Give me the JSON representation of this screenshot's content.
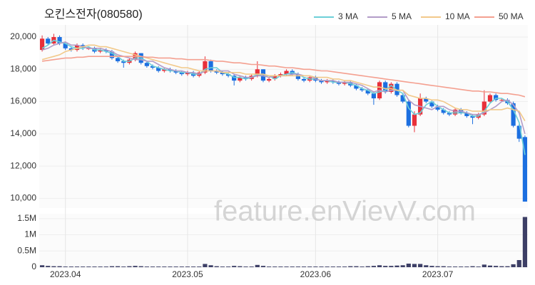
{
  "chart_data": {
    "type": "candlestick",
    "title": "오킨스전자(080580)",
    "watermark": "feature.enVievV.com",
    "up_color": "#e8303a",
    "down_color": "#1c6fe0",
    "ylim": [
      9400,
      20750
    ],
    "yticks": [
      {
        "value": 10000,
        "label": "10,000"
      },
      {
        "value": 12000,
        "label": "12,000"
      },
      {
        "value": 14000,
        "label": "14,000"
      },
      {
        "value": 16000,
        "label": "16,000"
      },
      {
        "value": 18000,
        "label": "18,000"
      },
      {
        "value": 20000,
        "label": "20,000"
      }
    ],
    "xticks": [
      {
        "value": 4,
        "label": "2023.04"
      },
      {
        "value": 25,
        "label": "2023.05"
      },
      {
        "value": 47,
        "label": "2023.06"
      },
      {
        "value": 68,
        "label": "2023.07"
      }
    ],
    "legend": "top-right",
    "open": [
      19200,
      19900,
      19600,
      20000,
      19600,
      19300,
      19200,
      19500,
      19300,
      19300,
      19100,
      19200,
      19100,
      18700,
      18500,
      18400,
      18600,
      19000,
      18400,
      18200,
      18100,
      17900,
      18000,
      17900,
      17800,
      17700,
      17800,
      17600,
      17800,
      18500,
      17900,
      17800,
      17700,
      17600,
      17300,
      17500,
      17400,
      17600,
      18000,
      17300,
      17400,
      17600,
      17700,
      17900,
      17700,
      17400,
      17300,
      17500,
      17300,
      17200,
      17300,
      17200,
      17100,
      17200,
      17000,
      16800,
      16700,
      16500,
      16200,
      17200,
      16600,
      17100,
      16400,
      16000,
      14500,
      15200,
      16200,
      16000,
      15700,
      15500,
      15300,
      15200,
      15500,
      15300,
      15100,
      15000,
      15200,
      16000,
      16400,
      16100,
      16100,
      15900,
      14500,
      13800
    ],
    "high": [
      20100,
      20000,
      20200,
      20100,
      19700,
      19400,
      19600,
      19600,
      19400,
      19400,
      19300,
      19300,
      19200,
      18800,
      18600,
      18700,
      19100,
      19000,
      18500,
      18300,
      18200,
      18100,
      18100,
      18000,
      17900,
      17900,
      17900,
      17900,
      18800,
      18600,
      18000,
      17900,
      17800,
      17700,
      17600,
      17600,
      17700,
      18500,
      18000,
      17500,
      17700,
      17800,
      18000,
      18000,
      17800,
      17500,
      17600,
      17600,
      17400,
      17400,
      17400,
      17300,
      17300,
      17300,
      17100,
      16900,
      16800,
      16600,
      17300,
      17300,
      17200,
      17200,
      16500,
      16100,
      15400,
      16500,
      16300,
      16100,
      15800,
      15600,
      15400,
      15600,
      15600,
      15400,
      15200,
      15300,
      16700,
      16500,
      16500,
      16200,
      16200,
      16000,
      14600,
      13900
    ],
    "low": [
      19100,
      19500,
      19500,
      19500,
      19200,
      19100,
      19100,
      19200,
      19200,
      19000,
      19000,
      19000,
      18600,
      18400,
      18100,
      18300,
      18500,
      18300,
      18100,
      18000,
      17800,
      17800,
      17800,
      17700,
      17600,
      17600,
      17500,
      17500,
      17700,
      17800,
      17700,
      17600,
      17500,
      17000,
      17200,
      17300,
      17300,
      17500,
      17200,
      17200,
      17300,
      17500,
      17600,
      17600,
      17300,
      17200,
      17200,
      17200,
      17100,
      17100,
      17100,
      17000,
      17000,
      16900,
      16700,
      16600,
      16400,
      15800,
      16100,
      16500,
      16500,
      16300,
      15900,
      14400,
      14100,
      15100,
      15900,
      15600,
      15400,
      15200,
      15100,
      15100,
      15200,
      15000,
      14600,
      14900,
      15100,
      15900,
      16000,
      16000,
      15800,
      14400,
      13500,
      9800
    ],
    "close": [
      19900,
      19600,
      20000,
      19600,
      19300,
      19200,
      19500,
      19300,
      19300,
      19100,
      19200,
      19100,
      18700,
      18500,
      18400,
      18600,
      19000,
      18400,
      18200,
      18100,
      17900,
      18000,
      17900,
      17800,
      17700,
      17800,
      17600,
      17800,
      18500,
      17900,
      17800,
      17700,
      17600,
      17300,
      17500,
      17400,
      17600,
      18000,
      17300,
      17400,
      17600,
      17700,
      17900,
      17700,
      17400,
      17300,
      17500,
      17300,
      17200,
      17300,
      17200,
      17100,
      17200,
      17000,
      16800,
      16700,
      16500,
      16200,
      17200,
      16600,
      17100,
      16400,
      16000,
      14500,
      15200,
      16200,
      16000,
      15700,
      15500,
      15300,
      15200,
      15500,
      15300,
      15100,
      15000,
      15200,
      16000,
      16400,
      16100,
      16100,
      15900,
      14500,
      13700,
      9800
    ],
    "series": [
      {
        "name": "3 MA",
        "color": "#6ccfd8",
        "values": [
          19300,
          19500,
          19800,
          19700,
          19600,
          19400,
          19300,
          19300,
          19400,
          19200,
          19200,
          19100,
          19000,
          18800,
          18500,
          18500,
          18700,
          18700,
          18500,
          18200,
          18100,
          18000,
          17900,
          17900,
          17800,
          17800,
          17700,
          17700,
          18000,
          18100,
          18100,
          17800,
          17700,
          17500,
          17500,
          17400,
          17500,
          17700,
          17600,
          17600,
          17400,
          17600,
          17700,
          17800,
          17700,
          17500,
          17400,
          17400,
          17300,
          17300,
          17200,
          17200,
          17200,
          17100,
          17000,
          16800,
          16700,
          16500,
          16600,
          16700,
          17000,
          16700,
          16500,
          15600,
          15200,
          15300,
          15800,
          16000,
          15700,
          15500,
          15300,
          15300,
          15300,
          15300,
          15100,
          15100,
          15400,
          15900,
          16200,
          16200,
          16000,
          15500,
          14700,
          12700
        ]
      },
      {
        "name": "5 MA",
        "color": "#b39cc8",
        "values": [
          19200,
          19300,
          19500,
          19600,
          19700,
          19500,
          19500,
          19400,
          19300,
          19300,
          19300,
          19200,
          19100,
          18900,
          18800,
          18700,
          18600,
          18600,
          18500,
          18500,
          18300,
          18100,
          18000,
          17900,
          17900,
          17800,
          17800,
          17700,
          17900,
          17900,
          17900,
          17900,
          17900,
          17700,
          17600,
          17500,
          17500,
          17600,
          17600,
          17500,
          17600,
          17600,
          17600,
          17700,
          17700,
          17600,
          17600,
          17400,
          17300,
          17300,
          17300,
          17200,
          17200,
          17200,
          17100,
          17000,
          16800,
          16600,
          16700,
          16600,
          16700,
          16700,
          16700,
          16100,
          15800,
          15700,
          15600,
          15500,
          15700,
          15700,
          15500,
          15400,
          15400,
          15300,
          15200,
          15200,
          15300,
          15500,
          15700,
          16000,
          16100,
          15800,
          15300,
          14000
        ]
      },
      {
        "name": "10 MA",
        "color": "#f2c98a",
        "values": [
          18600,
          18700,
          18800,
          18900,
          19100,
          19200,
          19300,
          19400,
          19500,
          19500,
          19400,
          19400,
          19300,
          19200,
          19100,
          19000,
          18900,
          18800,
          18700,
          18600,
          18500,
          18400,
          18300,
          18200,
          18100,
          18100,
          18000,
          17900,
          17900,
          17900,
          17900,
          17800,
          17800,
          17800,
          17800,
          17700,
          17700,
          17700,
          17700,
          17600,
          17600,
          17600,
          17600,
          17600,
          17600,
          17600,
          17600,
          17500,
          17500,
          17500,
          17400,
          17400,
          17300,
          17300,
          17200,
          17100,
          17000,
          16900,
          16900,
          16800,
          16800,
          16700,
          16700,
          16400,
          16300,
          16200,
          16200,
          16100,
          16100,
          16000,
          15800,
          15600,
          15500,
          15500,
          15400,
          15400,
          15400,
          15500,
          15500,
          15500,
          15600,
          15500,
          15400,
          14800
        ]
      },
      {
        "name": "50 MA",
        "color": "#f4a090",
        "values": [
          18500,
          18550,
          18600,
          18650,
          18700,
          18700,
          18750,
          18750,
          18800,
          18800,
          18800,
          18800,
          18800,
          18800,
          18800,
          18800,
          18800,
          18800,
          18750,
          18750,
          18700,
          18700,
          18700,
          18650,
          18650,
          18600,
          18600,
          18600,
          18600,
          18550,
          18500,
          18500,
          18450,
          18400,
          18400,
          18350,
          18300,
          18300,
          18250,
          18200,
          18200,
          18150,
          18100,
          18100,
          18050,
          18000,
          18000,
          17950,
          17900,
          17900,
          17850,
          17800,
          17750,
          17700,
          17650,
          17600,
          17550,
          17500,
          17450,
          17400,
          17350,
          17300,
          17250,
          17200,
          17150,
          17100,
          17050,
          17000,
          16950,
          16900,
          16850,
          16800,
          16750,
          16700,
          16650,
          16650,
          16600,
          16600,
          16550,
          16500,
          16500,
          16450,
          16400,
          16300
        ]
      }
    ],
    "volume": {
      "color": "#3d3f66",
      "ylim": [
        0,
        1650000
      ],
      "yticks": [
        0,
        {
          "value": 500000,
          "label": "0.5M"
        },
        {
          "value": 1000000,
          "label": "1M"
        },
        {
          "value": 1500000,
          "label": "1.5M"
        }
      ],
      "values": [
        60000,
        40000,
        30000,
        30000,
        20000,
        20000,
        20000,
        20000,
        20000,
        20000,
        20000,
        20000,
        30000,
        30000,
        20000,
        30000,
        40000,
        30000,
        20000,
        20000,
        20000,
        20000,
        20000,
        20000,
        20000,
        20000,
        20000,
        20000,
        100000,
        60000,
        30000,
        20000,
        20000,
        40000,
        30000,
        20000,
        20000,
        70000,
        40000,
        20000,
        20000,
        20000,
        20000,
        20000,
        20000,
        20000,
        20000,
        20000,
        20000,
        20000,
        20000,
        20000,
        20000,
        30000,
        30000,
        20000,
        30000,
        40000,
        60000,
        40000,
        40000,
        50000,
        60000,
        110000,
        100000,
        100000,
        60000,
        40000,
        30000,
        30000,
        20000,
        20000,
        20000,
        20000,
        30000,
        20000,
        80000,
        50000,
        40000,
        30000,
        30000,
        90000,
        220000,
        1550000
      ]
    }
  }
}
